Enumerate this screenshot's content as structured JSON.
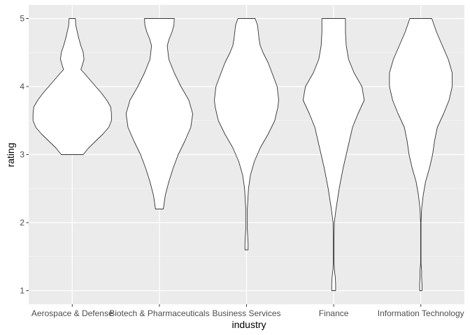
{
  "chart_data": {
    "type": "violin",
    "xlabel": "industry",
    "ylabel": "rating",
    "ylim": [
      0.8,
      5.2
    ],
    "yticks": [
      1,
      2,
      3,
      4,
      5
    ],
    "grid": true,
    "colors": {
      "panel": "#ebebeb",
      "grid_major": "#ffffff",
      "violin_fill": "#ffffff",
      "violin_stroke": "#333333"
    },
    "categories": [
      "Aerospace & Defense",
      "Biotech & Pharmaceuticals",
      "Business Services",
      "Finance",
      "Information Technology"
    ],
    "violins": [
      {
        "category": "Aerospace & Defense",
        "min": 3,
        "max": 5,
        "profile": [
          [
            3.0,
            0.28
          ],
          [
            3.1,
            0.42
          ],
          [
            3.2,
            0.6
          ],
          [
            3.3,
            0.78
          ],
          [
            3.4,
            0.93
          ],
          [
            3.5,
            1.0
          ],
          [
            3.6,
            1.0
          ],
          [
            3.7,
            0.98
          ],
          [
            3.8,
            0.88
          ],
          [
            3.9,
            0.75
          ],
          [
            4.0,
            0.6
          ],
          [
            4.1,
            0.45
          ],
          [
            4.2,
            0.3
          ],
          [
            4.25,
            0.22
          ],
          [
            4.3,
            0.25
          ],
          [
            4.4,
            0.3
          ],
          [
            4.5,
            0.28
          ],
          [
            4.6,
            0.22
          ],
          [
            4.7,
            0.17
          ],
          [
            4.8,
            0.13
          ],
          [
            4.9,
            0.09
          ],
          [
            5.0,
            0.08
          ]
        ]
      },
      {
        "category": "Biotech & Pharmaceuticals",
        "min": 2.2,
        "max": 5,
        "profile": [
          [
            2.2,
            0.1
          ],
          [
            2.4,
            0.15
          ],
          [
            2.6,
            0.24
          ],
          [
            2.8,
            0.35
          ],
          [
            3.0,
            0.48
          ],
          [
            3.2,
            0.65
          ],
          [
            3.4,
            0.8
          ],
          [
            3.6,
            0.85
          ],
          [
            3.8,
            0.75
          ],
          [
            4.0,
            0.55
          ],
          [
            4.2,
            0.38
          ],
          [
            4.4,
            0.24
          ],
          [
            4.6,
            0.2
          ],
          [
            4.7,
            0.25
          ],
          [
            4.8,
            0.32
          ],
          [
            4.9,
            0.37
          ],
          [
            5.0,
            0.38
          ]
        ]
      },
      {
        "category": "Business Services",
        "min": 1.6,
        "max": 5,
        "profile": [
          [
            1.6,
            0.04
          ],
          [
            1.7,
            0.04
          ],
          [
            1.8,
            0.03
          ],
          [
            1.9,
            0.02
          ],
          [
            2.0,
            0.02
          ],
          [
            2.2,
            0.02
          ],
          [
            2.3,
            0.03
          ],
          [
            2.5,
            0.05
          ],
          [
            2.7,
            0.1
          ],
          [
            2.9,
            0.2
          ],
          [
            3.1,
            0.35
          ],
          [
            3.3,
            0.55
          ],
          [
            3.5,
            0.72
          ],
          [
            3.7,
            0.8
          ],
          [
            3.8,
            0.82
          ],
          [
            4.0,
            0.78
          ],
          [
            4.2,
            0.65
          ],
          [
            4.35,
            0.55
          ],
          [
            4.5,
            0.42
          ],
          [
            4.6,
            0.35
          ],
          [
            4.7,
            0.32
          ],
          [
            4.8,
            0.3
          ],
          [
            4.9,
            0.28
          ],
          [
            5.0,
            0.22
          ]
        ]
      },
      {
        "category": "Finance",
        "min": 1,
        "max": 5,
        "profile": [
          [
            1.0,
            0.05
          ],
          [
            1.1,
            0.05
          ],
          [
            1.2,
            0.04
          ],
          [
            1.3,
            0.02
          ],
          [
            1.4,
            0.01
          ],
          [
            1.6,
            0.01
          ],
          [
            1.8,
            0.01
          ],
          [
            2.0,
            0.015
          ],
          [
            2.2,
            0.06
          ],
          [
            2.5,
            0.14
          ],
          [
            2.8,
            0.24
          ],
          [
            3.1,
            0.36
          ],
          [
            3.4,
            0.48
          ],
          [
            3.6,
            0.62
          ],
          [
            3.8,
            0.78
          ],
          [
            4.0,
            0.72
          ],
          [
            4.2,
            0.52
          ],
          [
            4.4,
            0.38
          ],
          [
            4.6,
            0.32
          ],
          [
            4.8,
            0.3
          ],
          [
            5.0,
            0.3
          ]
        ]
      },
      {
        "category": "Information Technology",
        "min": 1,
        "max": 5,
        "profile": [
          [
            1.0,
            0.03
          ],
          [
            1.1,
            0.03
          ],
          [
            1.2,
            0.02
          ],
          [
            1.3,
            0.02
          ],
          [
            1.4,
            0.005
          ],
          [
            2.0,
            0.005
          ],
          [
            2.2,
            0.02
          ],
          [
            2.4,
            0.06
          ],
          [
            2.6,
            0.12
          ],
          [
            2.8,
            0.22
          ],
          [
            3.0,
            0.3
          ],
          [
            3.2,
            0.35
          ],
          [
            3.4,
            0.42
          ],
          [
            3.6,
            0.58
          ],
          [
            3.8,
            0.72
          ],
          [
            4.0,
            0.8
          ],
          [
            4.2,
            0.8
          ],
          [
            4.4,
            0.7
          ],
          [
            4.6,
            0.55
          ],
          [
            4.8,
            0.4
          ],
          [
            5.0,
            0.28
          ]
        ]
      }
    ]
  }
}
